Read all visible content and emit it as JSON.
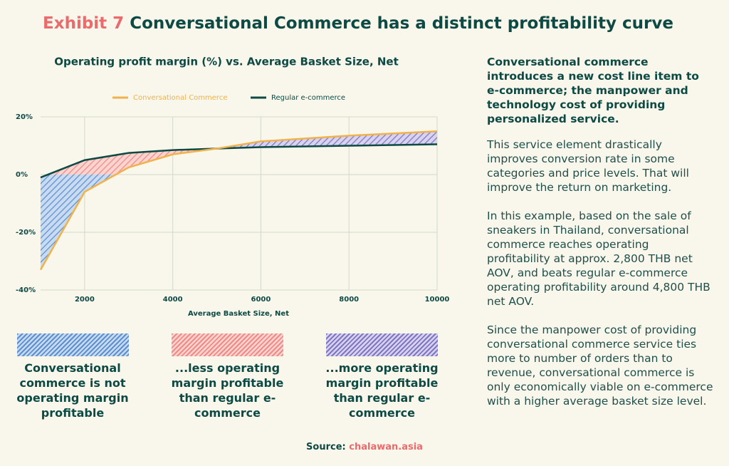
{
  "header": {
    "exhibit": "Exhibit 7",
    "title": "Conversational Commerce has a distinct profitability curve"
  },
  "chart_data": {
    "type": "line",
    "title": "Operating profit margin (%) vs. Average Basket Size, Net",
    "x_label": "Average Basket Size, Net",
    "x": [
      1000,
      2000,
      3000,
      4000,
      5000,
      6000,
      8000,
      10000
    ],
    "series": [
      {
        "name": "Conversational Commerce",
        "color": "#f0b24a",
        "values": [
          -33,
          -6,
          2.5,
          7,
          9,
          11.5,
          13.5,
          15
        ]
      },
      {
        "name": "Regular e-commerce",
        "color": "#0d4a44",
        "values": [
          -1,
          5,
          7.5,
          8.5,
          9,
          9.5,
          10,
          10.5
        ]
      }
    ],
    "xlim": [
      1000,
      10000
    ],
    "xticks": [
      2000,
      4000,
      6000,
      8000,
      10000
    ],
    "ylim": [
      -40,
      20
    ],
    "yticks": [
      {
        "value": -40,
        "label": "-40%"
      },
      {
        "value": -20,
        "label": "-20%"
      },
      {
        "value": 0,
        "label": "0%"
      },
      {
        "value": 20,
        "label": "20%"
      }
    ],
    "grid": true,
    "legend": "top"
  },
  "legend_boxes": [
    {
      "label": "Conversational commerce is not operating margin profitable"
    },
    {
      "label": "...less operating margin profitable than regular e-commerce"
    },
    {
      "label": "...more operating margin profitable than regular e-commerce"
    }
  ],
  "sidebar": {
    "heading": "Conversational commerce introduces a new cost line item to e-commerce; the manpower and technology cost of providing personalized service.",
    "paragraphs": [
      "This service element drastically improves conversion rate in some categories and price levels. That will improve the return on marketing.",
      "In this example, based on the sale of sneakers in Thailand, conversational commerce reaches operating profitability at approx. 2,800 THB net AOV, and beats regular e-commerce operating profitability around 4,800 THB net AOV.",
      "Since the manpower cost of providing conversational commerce service ties more to number of orders than to revenue, conversational commerce is only economically viable on e-commerce with a higher average basket size level."
    ]
  },
  "source": {
    "label": "Source:",
    "link": "chalawan.asia"
  }
}
